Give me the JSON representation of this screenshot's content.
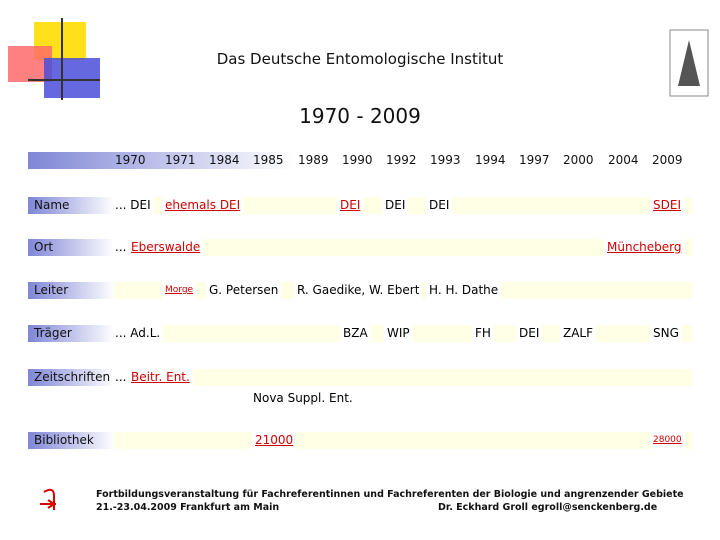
{
  "header": {
    "title": "Das Deutsche Entomologische Institut",
    "subtitle": "1970 - 2009"
  },
  "years": [
    "1970",
    "1971",
    "1984",
    "1985",
    "1989",
    "1990",
    "1992",
    "1993",
    "1994",
    "1997",
    "2000",
    "2004",
    "2009"
  ],
  "rows": [
    {
      "label": "Name",
      "items": [
        {
          "text": "... DEI"
        },
        {
          "text": "ehemals DEI",
          "link": true
        },
        {
          "text": "DEI",
          "link": true
        },
        {
          "text": "DEI"
        },
        {
          "text": "DEI"
        },
        {
          "text": "SDEI",
          "link": true
        }
      ]
    },
    {
      "label": "Ort",
      "items": [
        {
          "text": "... "
        },
        {
          "text": "Eberswalde",
          "link": true
        },
        {
          "text": "Müncheberg",
          "link": true
        }
      ]
    },
    {
      "label": "Leiter",
      "items": [
        {
          "text": "Morge",
          "link": true,
          "small": true
        },
        {
          "text": "G. Petersen"
        },
        {
          "text": "R. Gaedike, W. Ebert"
        },
        {
          "text": "H. H. Dathe"
        }
      ]
    },
    {
      "label": "Träger",
      "items": [
        {
          "text": "... Ad.L."
        },
        {
          "text": "BZA"
        },
        {
          "text": "WIP"
        },
        {
          "text": "FH"
        },
        {
          "text": "DEI"
        },
        {
          "text": "ZALF"
        },
        {
          "text": "SNG"
        }
      ]
    },
    {
      "label": "Zeitschriften",
      "items": [
        {
          "text": "... "
        },
        {
          "text": "Beitr. Ent.",
          "link": true
        }
      ]
    },
    {
      "label": "Bibliothek",
      "items": [
        {
          "text": "21000",
          "link": true
        },
        {
          "text": "28000",
          "link": true,
          "small": true
        }
      ]
    }
  ],
  "nova": "Nova Suppl. Ent.",
  "footer": {
    "line1": "Fortbildungsveranstaltung für Fachreferentinnen und Fachreferenten der Biologie und angrenzender Gebiete",
    "line2": "21.-23.04.2009 Frankfurt am Main",
    "author": "Dr. Eckhard Groll egroll@senckenberg.de"
  }
}
